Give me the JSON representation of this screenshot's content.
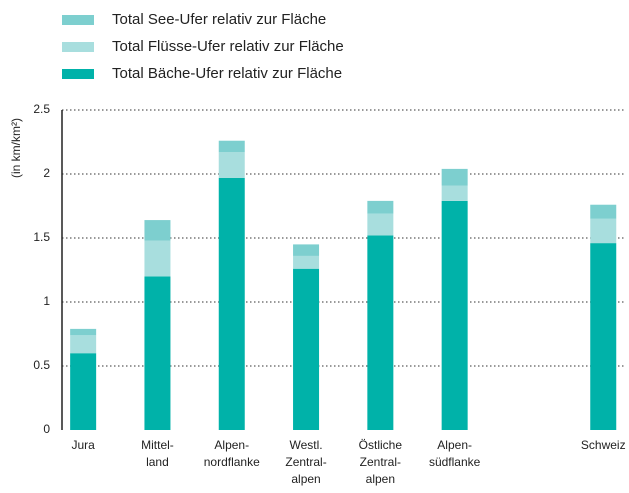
{
  "chart_data": {
    "type": "stacked_bar",
    "y_label": "(in km/km²)",
    "categories": [
      "Jura",
      [
        "Mittel-",
        "land"
      ],
      [
        "Alpen-",
        "nordflanke"
      ],
      [
        "Westl.",
        "Zentral-",
        "alpen"
      ],
      [
        "Östliche",
        "Zentral-",
        "alpen"
      ],
      [
        "Alpen-",
        "südflanke"
      ],
      null,
      "Schweiz"
    ],
    "series": [
      {
        "name": "Total See-Ufer relativ zur Fläche",
        "color": "#7dcfcf",
        "values": [
          0.05,
          0.16,
          0.09,
          0.09,
          0.1,
          0.13,
          null,
          0.11
        ]
      },
      {
        "name": "Total Flüsse-Ufer relativ zur Fläche",
        "color": "#a8dede",
        "values": [
          0.14,
          0.28,
          0.2,
          0.1,
          0.17,
          0.12,
          null,
          0.19
        ]
      },
      {
        "name": "Total Bäche-Ufer relativ zur Fläche",
        "color": "#00b2a9",
        "values": [
          0.6,
          1.2,
          1.97,
          1.26,
          1.52,
          1.79,
          null,
          1.46
        ]
      }
    ],
    "ylim": [
      0,
      2.5
    ],
    "yticks": [
      0,
      0.5,
      1,
      1.5,
      2,
      2.5
    ],
    "grid": true
  }
}
